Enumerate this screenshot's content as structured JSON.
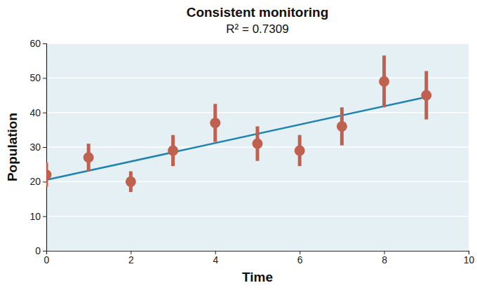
{
  "chart_data": {
    "type": "scatter",
    "title": "Consistent monitoring",
    "subtitle": "R² = 0.7309",
    "x_label": "Time",
    "y_label": "Population",
    "x": [
      0,
      1,
      2,
      3,
      4,
      5,
      6,
      7,
      8,
      9
    ],
    "series": [
      {
        "color": "#c0614f",
        "marker": "circle",
        "values": [
          22,
          27,
          20,
          29,
          37,
          31,
          29,
          36,
          49,
          45
        ],
        "errors": [
          3.5,
          4,
          3,
          4.5,
          5.5,
          5,
          4.5,
          5.5,
          7.5,
          7
        ]
      }
    ],
    "trendline": {
      "x": [
        0,
        9
      ],
      "values": [
        20.5,
        44.5
      ],
      "color": "#2083b0"
    },
    "xlim": [
      0,
      10
    ],
    "xticks": [
      0,
      2,
      4,
      6,
      8,
      10
    ],
    "ylim": [
      0,
      60
    ],
    "yticks": [
      0,
      10,
      20,
      30,
      40,
      50,
      60
    ],
    "grid": true
  }
}
